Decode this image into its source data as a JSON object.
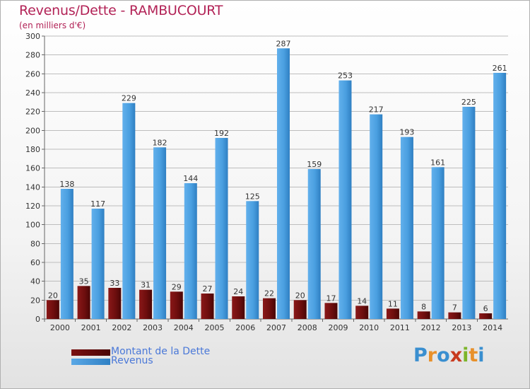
{
  "header": {
    "title": "Revenus/Dette - RAMBUCOURT",
    "subtitle": "(en milliers d'€)"
  },
  "colors": {
    "title": "#b22256",
    "dette": "#7a1010",
    "revenus": "#4da0e0",
    "axis_text": "#333333"
  },
  "chart_data": {
    "type": "bar",
    "title": "Revenus/Dette - RAMBUCOURT",
    "ylabel": "(en milliers d'€)",
    "xlabel": "",
    "categories": [
      "2000",
      "2001",
      "2002",
      "2003",
      "2004",
      "2005",
      "2006",
      "2007",
      "2008",
      "2009",
      "2010",
      "2011",
      "2012",
      "2013",
      "2014"
    ],
    "series": [
      {
        "name": "Montant de la Dette",
        "values": [
          20,
          35,
          33,
          31,
          29,
          27,
          24,
          22,
          20,
          17,
          14,
          11,
          8,
          7,
          6
        ]
      },
      {
        "name": "Revenus",
        "values": [
          138,
          117,
          229,
          182,
          144,
          192,
          125,
          287,
          159,
          253,
          217,
          193,
          161,
          225,
          261
        ]
      }
    ],
    "ylim": [
      0,
      300
    ],
    "yticks": [
      0,
      20,
      40,
      60,
      80,
      100,
      120,
      140,
      160,
      180,
      200,
      220,
      240,
      260,
      280,
      300
    ],
    "grid": true,
    "legend": "bottom-left"
  },
  "legend": {
    "dette_label": "Montant de la Dette",
    "revenus_label": "Revenus"
  },
  "logo": {
    "letters": [
      "P",
      "r",
      "o",
      "x",
      "i",
      "t",
      "i"
    ],
    "colors": [
      "#3a8fd0",
      "#e8902a",
      "#3a8fd0",
      "#c83a1e",
      "#7cb52a",
      "#e8902a",
      "#3a8fd0"
    ]
  }
}
